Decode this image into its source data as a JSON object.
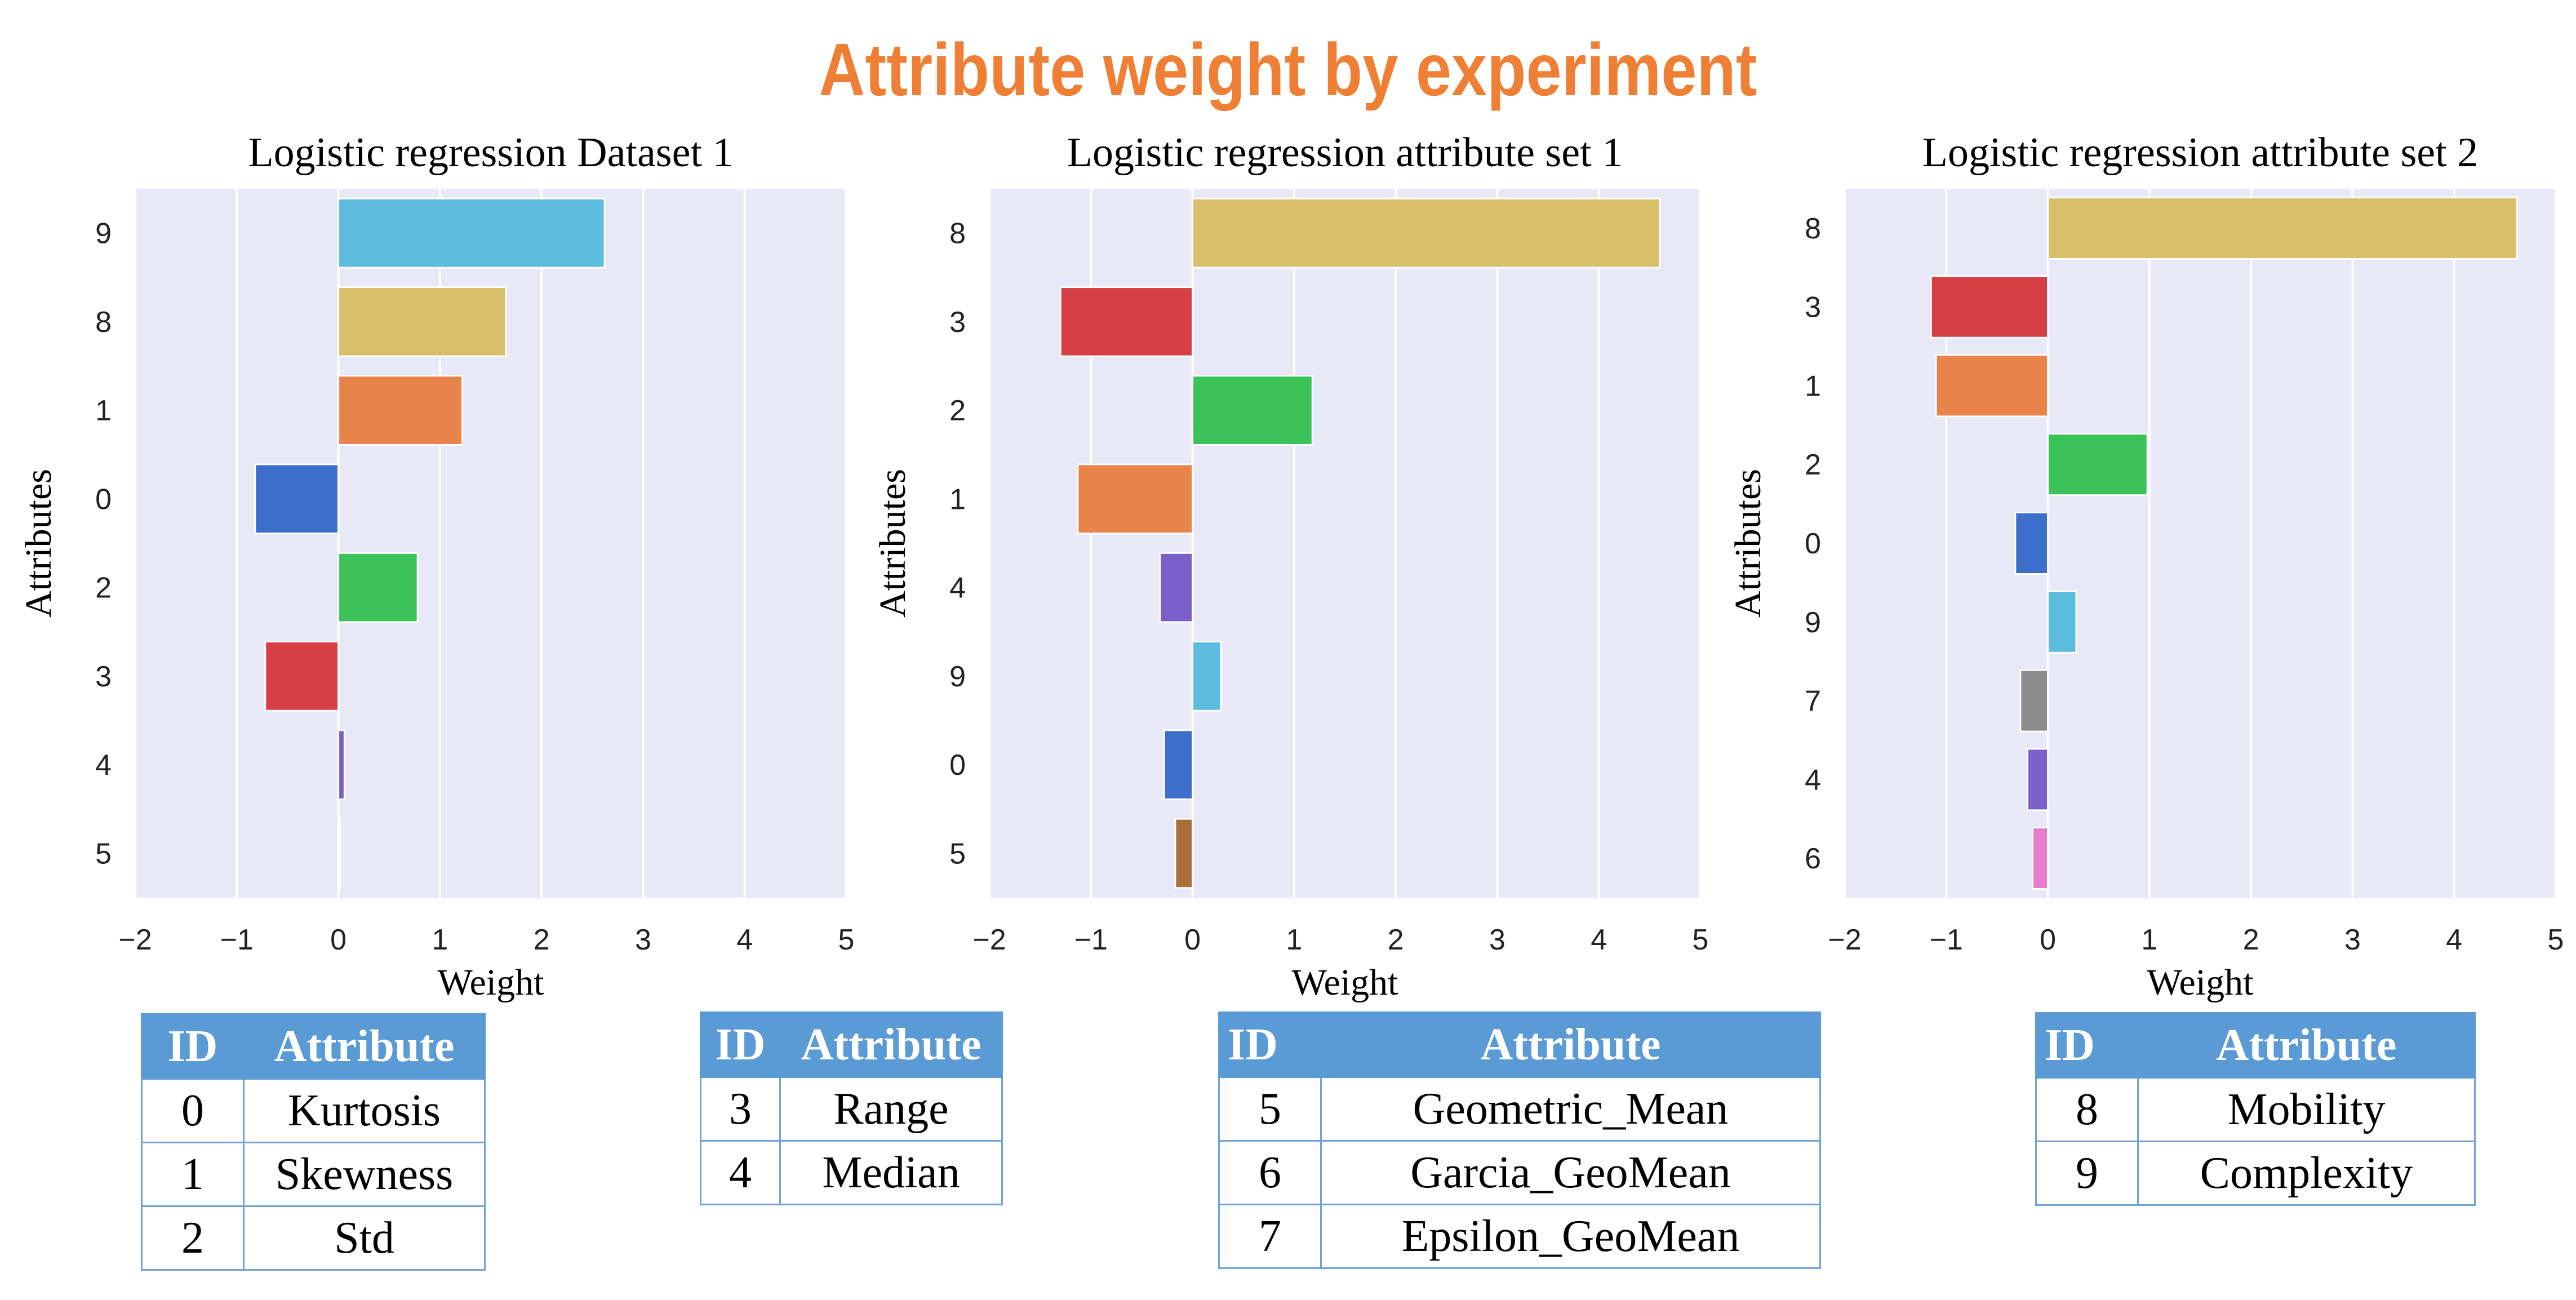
{
  "title": "Attribute weight by experiment",
  "colors": {
    "title": "#ef7f34",
    "plot_bg": "#e8e8f6",
    "grid": "#ffffff",
    "header": "#5b9bd5"
  },
  "attribute_colors": {
    "0": "#3b6fcb",
    "1": "#e8844a",
    "2": "#3bc35a",
    "3": "#d63f45",
    "4": "#7b5fcb",
    "5": "#a86e3c",
    "6": "#e87ccc",
    "7": "#8c8c8c",
    "8": "#d8c06a",
    "9": "#5bbcdd"
  },
  "chart_data": [
    {
      "type": "bar",
      "orientation": "horizontal",
      "title": "Logistic regression Dataset 1",
      "xlabel": "Weight",
      "ylabel": "Attributes",
      "xlim": [
        -2,
        5
      ],
      "xticks": [
        "−2",
        "−1",
        "0",
        "1",
        "2",
        "3",
        "4",
        "5"
      ],
      "grid": true,
      "categories": [
        "9",
        "8",
        "1",
        "0",
        "2",
        "3",
        "4",
        "5"
      ],
      "values": [
        2.62,
        1.65,
        1.22,
        -0.82,
        0.78,
        -0.72,
        0.06,
        0.01
      ]
    },
    {
      "type": "bar",
      "orientation": "horizontal",
      "title": "Logistic regression attribute set 1",
      "xlabel": "Weight",
      "ylabel": "Attributes",
      "xlim": [
        -2,
        5
      ],
      "xticks": [
        "−2",
        "−1",
        "0",
        "1",
        "2",
        "3",
        "4",
        "5"
      ],
      "grid": true,
      "categories": [
        "8",
        "3",
        "2",
        "1",
        "4",
        "9",
        "0",
        "5"
      ],
      "values": [
        4.6,
        -1.3,
        1.18,
        -1.13,
        -0.32,
        0.28,
        -0.28,
        -0.17
      ]
    },
    {
      "type": "bar",
      "orientation": "horizontal",
      "title": "Logistic regression attribute set 2",
      "xlabel": "Weight",
      "ylabel": "Attributes",
      "xlim": [
        -2,
        5
      ],
      "xticks": [
        "−2",
        "−1",
        "0",
        "1",
        "2",
        "3",
        "4",
        "5"
      ],
      "grid": true,
      "categories": [
        "8",
        "3",
        "1",
        "2",
        "0",
        "9",
        "7",
        "4",
        "6"
      ],
      "values": [
        4.62,
        -1.15,
        -1.1,
        0.98,
        -0.32,
        0.28,
        -0.27,
        -0.2,
        -0.15
      ]
    }
  ],
  "tables": [
    {
      "headers": [
        "ID",
        "Attribute"
      ],
      "rows": [
        [
          "0",
          "Kurtosis"
        ],
        [
          "1",
          "Skewness"
        ],
        [
          "2",
          "Std"
        ]
      ]
    },
    {
      "headers": [
        "ID",
        "Attribute"
      ],
      "rows": [
        [
          "3",
          "Range"
        ],
        [
          "4",
          "Median"
        ]
      ]
    },
    {
      "headers": [
        "ID",
        "Attribute"
      ],
      "rows": [
        [
          "5",
          "Geometric_Mean"
        ],
        [
          "6",
          "Garcia_GeoMean"
        ],
        [
          "7",
          "Epsilon_GeoMean"
        ]
      ]
    },
    {
      "headers": [
        "ID",
        "Attribute"
      ],
      "rows": [
        [
          "8",
          "Mobility"
        ],
        [
          "9",
          "Complexity"
        ]
      ]
    }
  ]
}
